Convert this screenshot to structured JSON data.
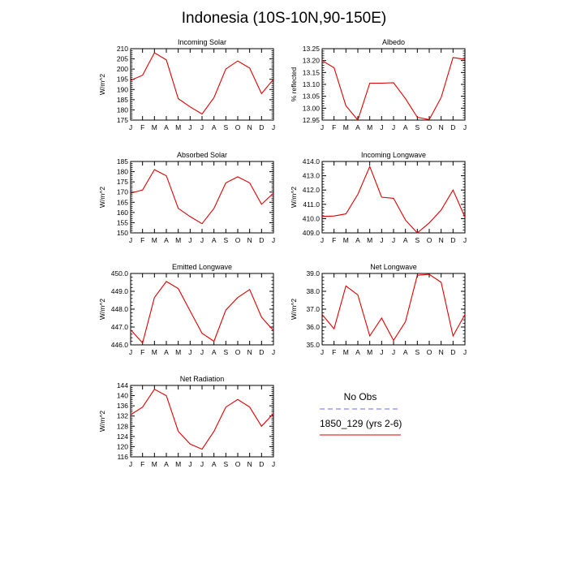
{
  "title": "Indonesia (10S-10N,90-150E)",
  "colors": {
    "model": "#e00000",
    "obs": "#6b6bff",
    "axis": "#000000"
  },
  "legend": {
    "entries": [
      {
        "name": "No Obs",
        "style": "dashed",
        "color": "#6b6bff"
      },
      {
        "name": "1850_129 (yrs 2-6)",
        "style": "solid",
        "color": "#e00000"
      }
    ]
  },
  "chart_data": [
    {
      "type": "line",
      "title": "Incoming Solar",
      "ylabel": "W/m^2",
      "x": [
        "J",
        "F",
        "M",
        "A",
        "M",
        "J",
        "J",
        "A",
        "S",
        "O",
        "N",
        "D",
        "J"
      ],
      "ylim": [
        175,
        210
      ],
      "yticks": [
        "175",
        "180",
        "185",
        "190",
        "195",
        "200",
        "205",
        "210"
      ],
      "series": [
        {
          "name": "1850_129 (yrs 2-6)",
          "values": [
            194.5,
            197,
            208,
            204.5,
            185.5,
            181.5,
            178,
            186,
            200,
            204,
            200.5,
            188,
            195
          ]
        }
      ]
    },
    {
      "type": "line",
      "title": "Albedo",
      "ylabel": "% reflected",
      "x": [
        "J",
        "F",
        "M",
        "A",
        "M",
        "J",
        "J",
        "A",
        "S",
        "O",
        "N",
        "D",
        "J"
      ],
      "ylim": [
        12.95,
        13.25
      ],
      "yticks": [
        "12.95",
        "13.00",
        "13.05",
        "13.10",
        "13.15",
        "13.20",
        "13.25"
      ],
      "series": [
        {
          "name": "1850_129 (yrs 2-6)",
          "values": [
            13.2,
            13.17,
            13.01,
            12.95,
            13.105,
            13.105,
            13.107,
            13.04,
            12.962,
            12.952,
            13.045,
            13.213,
            13.205
          ]
        }
      ]
    },
    {
      "type": "line",
      "title": "Absorbed Solar",
      "ylabel": "W/m^2",
      "x": [
        "J",
        "F",
        "M",
        "A",
        "M",
        "J",
        "J",
        "A",
        "S",
        "O",
        "N",
        "D",
        "J"
      ],
      "ylim": [
        150,
        185
      ],
      "yticks": [
        "150",
        "155",
        "160",
        "165",
        "170",
        "175",
        "180",
        "185"
      ],
      "series": [
        {
          "name": "1850_129 (yrs 2-6)",
          "values": [
            169.5,
            171,
            181,
            178,
            162,
            158,
            154.5,
            162,
            174.5,
            177.5,
            174.5,
            164,
            169.5
          ]
        }
      ]
    },
    {
      "type": "line",
      "title": "Incoming Longwave",
      "ylabel": "W/m^2",
      "x": [
        "J",
        "F",
        "M",
        "A",
        "M",
        "J",
        "J",
        "A",
        "S",
        "O",
        "N",
        "D",
        "J"
      ],
      "ylim": [
        409.0,
        414.0
      ],
      "yticks": [
        "409.0",
        "410.0",
        "411.0",
        "412.0",
        "413.0",
        "414.0"
      ],
      "series": [
        {
          "name": "1850_129 (yrs 2-6)",
          "values": [
            410.15,
            410.18,
            410.33,
            411.7,
            413.65,
            411.5,
            411.42,
            409.9,
            409.0,
            409.7,
            410.6,
            412.0,
            410.1
          ]
        }
      ]
    },
    {
      "type": "line",
      "title": "Emitted Longwave",
      "ylabel": "W/m^2",
      "x": [
        "J",
        "F",
        "M",
        "A",
        "M",
        "J",
        "J",
        "A",
        "S",
        "O",
        "N",
        "D",
        "J"
      ],
      "ylim": [
        446.0,
        450.0
      ],
      "yticks": [
        "446.0",
        "447.0",
        "448.0",
        "449.0",
        "450.0"
      ],
      "series": [
        {
          "name": "1850_129 (yrs 2-6)",
          "values": [
            446.85,
            446.1,
            448.65,
            449.55,
            449.15,
            447.9,
            446.65,
            446.2,
            447.95,
            448.65,
            449.1,
            447.55,
            446.8
          ]
        }
      ]
    },
    {
      "type": "line",
      "title": "Net Longwave",
      "ylabel": "W/m^2",
      "x": [
        "J",
        "F",
        "M",
        "A",
        "M",
        "J",
        "J",
        "A",
        "S",
        "O",
        "N",
        "D",
        "J"
      ],
      "ylim": [
        35.0,
        39.0
      ],
      "yticks": [
        "35.0",
        "36.0",
        "37.0",
        "38.0",
        "39.0"
      ],
      "series": [
        {
          "name": "1850_129 (yrs 2-6)",
          "values": [
            36.7,
            35.9,
            38.3,
            37.8,
            35.5,
            36.5,
            35.25,
            36.3,
            38.9,
            38.95,
            38.5,
            35.5,
            36.7
          ]
        }
      ]
    },
    {
      "type": "line",
      "title": "Net Radiation",
      "ylabel": "W/m^2",
      "x": [
        "J",
        "F",
        "M",
        "A",
        "M",
        "J",
        "J",
        "A",
        "S",
        "O",
        "N",
        "D",
        "J"
      ],
      "ylim": [
        116,
        144
      ],
      "yticks": [
        "116",
        "120",
        "124",
        "128",
        "132",
        "136",
        "140",
        "144"
      ],
      "series": [
        {
          "name": "1850_129 (yrs 2-6)",
          "values": [
            132.5,
            135.5,
            142.5,
            140,
            126,
            121,
            119,
            126,
            135.5,
            138.5,
            135.5,
            128,
            133
          ]
        }
      ]
    }
  ]
}
